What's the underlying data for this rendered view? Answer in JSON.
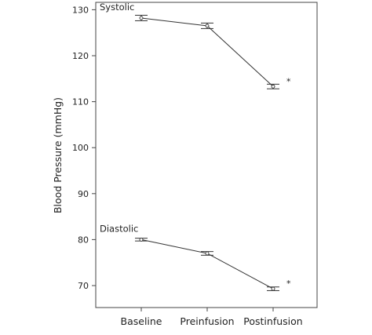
{
  "chart_data": {
    "type": "line",
    "title": "",
    "xlabel": "",
    "ylabel": "Blood Pressure (mmHg)",
    "categories": [
      "Baseline",
      "Preinfusion",
      "Postinfusion"
    ],
    "ylim": [
      64,
      131
    ],
    "yticks": [
      70,
      80,
      90,
      100,
      110,
      120,
      130
    ],
    "grid": false,
    "series": [
      {
        "name": "Systolic",
        "values": [
          128.2,
          126.5,
          113.3
        ],
        "error": [
          0.6,
          0.6,
          0.5
        ],
        "significance": [
          "",
          "",
          "*"
        ]
      },
      {
        "name": "Diastolic",
        "values": [
          80.0,
          77.0,
          69.3
        ],
        "error": [
          0.3,
          0.4,
          0.4
        ],
        "significance": [
          "",
          "",
          "*"
        ]
      }
    ]
  }
}
